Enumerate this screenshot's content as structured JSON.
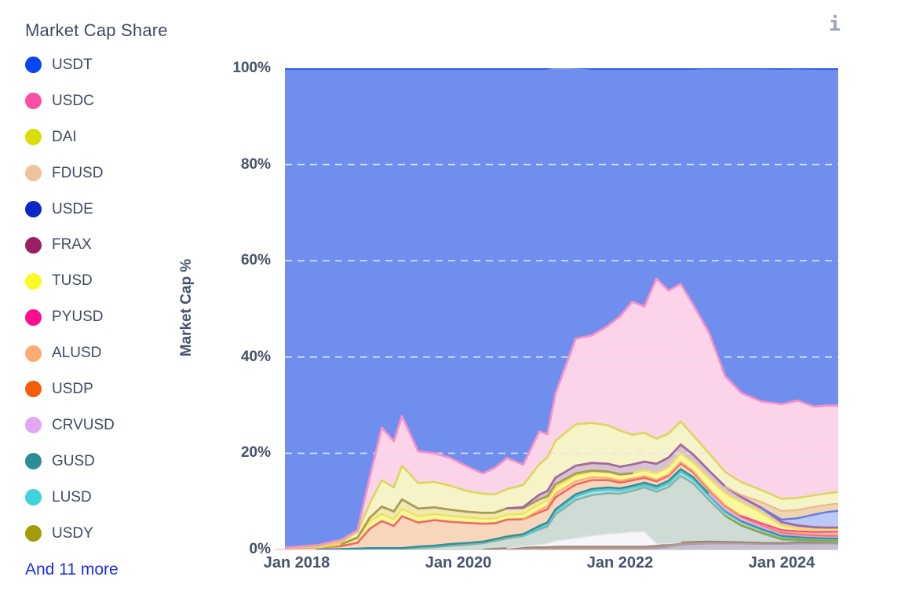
{
  "header": {
    "title": "Market Cap Share",
    "info_icon": "i"
  },
  "legend": {
    "items": [
      {
        "label": "USDT",
        "color": "#0647f0"
      },
      {
        "label": "USDC",
        "color": "#fc4fa3"
      },
      {
        "label": "DAI",
        "color": "#d9dd0a"
      },
      {
        "label": "FDUSD",
        "color": "#eec29b"
      },
      {
        "label": "USDE",
        "color": "#0b27c9"
      },
      {
        "label": "FRAX",
        "color": "#9a1f63"
      },
      {
        "label": "TUSD",
        "color": "#fbf928"
      },
      {
        "label": "PYUSD",
        "color": "#fb0f8e"
      },
      {
        "label": "ALUSD",
        "color": "#fcab72"
      },
      {
        "label": "USDP",
        "color": "#f45d0b"
      },
      {
        "label": "CRVUSD",
        "color": "#e2a6f5"
      },
      {
        "label": "GUSD",
        "color": "#2b8d96"
      },
      {
        "label": "LUSD",
        "color": "#3fd3dd"
      },
      {
        "label": "USDY",
        "color": "#a39b07"
      }
    ],
    "more_label": "And 11 more",
    "more_color": "#1b2fe8"
  },
  "axes": {
    "y_label": "Market Cap %",
    "y_ticks": [
      "100%",
      "80%",
      "60%",
      "40%",
      "20%",
      "0%"
    ],
    "x_ticks": [
      "Jan 2018",
      "Jan 2020",
      "Jan 2022",
      "Jan 2024"
    ],
    "grid_color": "#e4e3ed",
    "tick_color": "#46526e"
  },
  "chart_data": {
    "type": "area",
    "stacked": true,
    "title": "Market Cap Share",
    "ylabel": "Market Cap %",
    "unit": "percent of total stablecoin market cap",
    "ylim": [
      0,
      100
    ],
    "x_unit": "decimal year",
    "x_domain": [
      2017.85,
      2024.7
    ],
    "x_tick_years": [
      2018.0,
      2020.0,
      2022.0,
      2024.0
    ],
    "grid": "dashed horizontal at 20/40/60/80",
    "legend_position": "left column",
    "x": [
      2017.85,
      2018.25,
      2018.55,
      2018.75,
      2018.9,
      2019.05,
      2019.2,
      2019.3,
      2019.5,
      2019.7,
      2019.9,
      2020.1,
      2020.3,
      2020.45,
      2020.6,
      2020.8,
      2021.0,
      2021.1,
      2021.2,
      2021.45,
      2021.65,
      2021.85,
      2022.0,
      2022.15,
      2022.3,
      2022.45,
      2022.6,
      2022.75,
      2022.9,
      2023.1,
      2023.3,
      2023.5,
      2023.75,
      2024.0,
      2024.2,
      2024.4,
      2024.55,
      2024.7
    ],
    "series": [
      {
        "id": "more-gray",
        "label": "",
        "in_legend": false,
        "fill": "#c6bfcc",
        "stroke": "#aaa2b3",
        "sw": 1.8,
        "values": [
          0,
          0,
          0,
          0,
          0,
          0,
          0,
          0,
          0,
          0,
          0,
          0,
          0,
          0,
          0,
          0,
          0,
          0,
          0,
          0,
          0,
          0,
          0,
          0,
          0,
          0.2,
          0.5,
          0.9,
          1.1,
          1.2,
          1.2,
          1.2,
          1.1,
          1.1,
          1.2,
          1.2,
          1.2,
          1.2
        ]
      },
      {
        "id": "more-brown",
        "label": "",
        "in_legend": false,
        "fill": "#b49a89",
        "stroke": "#9b8170",
        "sw": 1.8,
        "values": [
          0,
          0,
          0,
          0,
          0,
          0,
          0,
          0,
          0,
          0,
          0,
          0,
          0,
          0.2,
          0.3,
          0.4,
          0.5,
          0.5,
          0.6,
          0.6,
          0.6,
          0.6,
          0.6,
          0.6,
          0.6,
          0.6,
          0.6,
          0.6,
          0.5,
          0.5,
          0.4,
          0.35,
          0.3,
          0.25,
          0.25,
          0.2,
          0.2,
          0.2
        ]
      },
      {
        "id": "more-white",
        "label": "",
        "in_legend": false,
        "fill": "#f6f5f9",
        "stroke": "#e7e4ee",
        "sw": 1.5,
        "values": [
          0,
          0,
          0,
          0,
          0,
          0,
          0,
          0,
          0,
          0,
          0,
          0,
          0,
          0,
          0,
          0.2,
          0.5,
          0.7,
          1.2,
          1.7,
          2.2,
          2.6,
          2.8,
          3.0,
          3.1,
          0.4,
          0.1,
          0,
          0,
          0,
          0,
          0,
          0,
          0,
          0,
          0,
          0,
          0
        ]
      },
      {
        "id": "more-sage",
        "label": "",
        "in_legend": false,
        "fill": "#cfdcd5",
        "stroke": "#85b3a4",
        "sw": 2.6,
        "values": [
          0,
          0,
          0,
          0,
          0,
          0,
          0,
          0,
          0.3,
          0.5,
          0.8,
          1.0,
          1.3,
          1.6,
          2.0,
          2.2,
          3.2,
          3.6,
          5.5,
          8.0,
          8.5,
          8.5,
          8.2,
          8.6,
          9.2,
          10.8,
          11.8,
          13.8,
          12.2,
          8.6,
          5.4,
          3.4,
          2.0,
          0.7,
          0.4,
          0.3,
          0.2,
          0.2
        ]
      },
      {
        "id": "usdy",
        "label": "USDY",
        "in_legend": true,
        "fill": "#c4ba4a",
        "stroke": "#a39b07",
        "sw": 1.8,
        "values": [
          0,
          0,
          0,
          0,
          0,
          0,
          0,
          0,
          0,
          0,
          0,
          0,
          0,
          0,
          0,
          0,
          0,
          0,
          0,
          0,
          0,
          0,
          0,
          0,
          0,
          0,
          0,
          0,
          0,
          0,
          0,
          0.1,
          0.15,
          0.2,
          0.2,
          0.2,
          0.2,
          0.2
        ]
      },
      {
        "id": "lusd",
        "label": "LUSD",
        "in_legend": true,
        "fill": "#aee3ec",
        "stroke": "#52cbd9",
        "sw": 2.2,
        "values": [
          0,
          0,
          0,
          0,
          0,
          0,
          0,
          0,
          0,
          0,
          0,
          0,
          0,
          0,
          0,
          0,
          0.3,
          0.45,
          0.6,
          0.7,
          0.8,
          0.7,
          0.6,
          0.55,
          0.5,
          0.6,
          0.7,
          0.8,
          0.8,
          0.8,
          0.7,
          0.6,
          0.5,
          0.4,
          0.35,
          0.3,
          0.3,
          0.3
        ]
      },
      {
        "id": "gusd",
        "label": "GUSD",
        "in_legend": true,
        "fill": "#7fb9bf",
        "stroke": "#2f8f9a",
        "sw": 2.4,
        "values": [
          0,
          0,
          0.1,
          0.2,
          0.3,
          0.3,
          0.3,
          0.3,
          0.3,
          0.3,
          0.35,
          0.35,
          0.35,
          0.35,
          0.4,
          0.4,
          0.4,
          0.4,
          0.45,
          0.5,
          0.5,
          0.5,
          0.5,
          0.5,
          0.5,
          0.55,
          0.6,
          0.6,
          0.5,
          0.45,
          0.4,
          0.3,
          0.25,
          0.2,
          0.2,
          0.2,
          0.2,
          0.2
        ]
      },
      {
        "id": "crvusd",
        "label": "CRVUSD",
        "in_legend": true,
        "fill": "#ecc8f7",
        "stroke": "#dd9df0",
        "sw": 2.0,
        "values": [
          0,
          0,
          0,
          0,
          0,
          0,
          0,
          0,
          0,
          0,
          0,
          0,
          0,
          0,
          0,
          0,
          0,
          0,
          0,
          0,
          0,
          0,
          0,
          0,
          0,
          0,
          0,
          0,
          0,
          0,
          0.2,
          0.25,
          0.3,
          0.3,
          0.3,
          0.3,
          0.3,
          0.3
        ]
      },
      {
        "id": "usdp",
        "label": "USDP",
        "in_legend": true,
        "fill": "#f8d6bb",
        "stroke": "#ed6a62",
        "sw": 2.6,
        "values": [
          0.3,
          0.4,
          0.6,
          1.2,
          4.0,
          5.6,
          4.6,
          6.6,
          5.0,
          5.3,
          4.6,
          4.2,
          3.7,
          3.3,
          3.5,
          3.1,
          2.8,
          2.7,
          2.5,
          2.0,
          1.8,
          1.5,
          1.2,
          1.1,
          1.0,
          1.0,
          1.0,
          1.2,
          1.0,
          0.8,
          0.7,
          0.6,
          0.5,
          0.4,
          0.35,
          0.3,
          0.3,
          0.3
        ]
      },
      {
        "id": "alusd",
        "label": "ALUSD",
        "in_legend": true,
        "fill": "#fdd3ab",
        "stroke": "#fcab72",
        "sw": 2.0,
        "values": [
          0,
          0,
          0,
          0,
          0,
          0,
          0,
          0,
          0,
          0,
          0,
          0,
          0,
          0,
          0,
          0,
          0.5,
          0.65,
          0.8,
          0.7,
          0.6,
          0.5,
          0.4,
          0.4,
          0.35,
          0.35,
          0.3,
          0.3,
          0.3,
          0.25,
          0.2,
          0.2,
          0.2,
          0.2,
          0.2,
          0.2,
          0.2,
          0.2
        ]
      },
      {
        "id": "pyusd",
        "label": "PYUSD",
        "in_legend": true,
        "fill": "#fcc0da",
        "stroke": "#f74b9a",
        "sw": 2.2,
        "values": [
          0,
          0,
          0,
          0,
          0,
          0,
          0,
          0,
          0,
          0,
          0,
          0,
          0,
          0,
          0,
          0,
          0,
          0,
          0,
          0,
          0,
          0,
          0,
          0,
          0,
          0,
          0,
          0,
          0,
          0,
          0,
          0,
          0.15,
          0.3,
          0.35,
          0.45,
          0.55,
          0.6
        ]
      },
      {
        "id": "tusd",
        "label": "TUSD",
        "in_legend": true,
        "fill": "#fbf79d",
        "stroke": "#eee356",
        "sw": 2.4,
        "values": [
          0,
          0,
          0.4,
          0.9,
          1.5,
          1.5,
          1.4,
          1.5,
          1.3,
          1.25,
          1.2,
          1.1,
          1.05,
          1.0,
          1.05,
          1.1,
          1.2,
          1.25,
          1.3,
          1.2,
          1.1,
          1.1,
          1.2,
          1.1,
          1.2,
          1.3,
          1.5,
          1.8,
          1.7,
          2.2,
          2.5,
          2.8,
          2.2,
          0.8,
          0.5,
          0.4,
          0.4,
          0.4
        ]
      },
      {
        "id": "more-olive",
        "label": "",
        "in_legend": false,
        "fill": "#efe9b4",
        "stroke": "#ab9a55",
        "sw": 2.8,
        "values": [
          0,
          0,
          0,
          0.2,
          0.8,
          1.5,
          1.6,
          2.0,
          1.6,
          1.4,
          1.3,
          1.2,
          1.2,
          1.2,
          1.3,
          1.2,
          1.0,
          0.8,
          0.6,
          0.4,
          0.3,
          0.2,
          0.1,
          0,
          0,
          0,
          0,
          0,
          0,
          0,
          0,
          0,
          0,
          0,
          0,
          0,
          0,
          0
        ]
      },
      {
        "id": "frax",
        "label": "FRAX",
        "in_legend": true,
        "fill": "#d8c3d3",
        "stroke": "#a4689e",
        "sw": 2.8,
        "values": [
          0,
          0,
          0,
          0,
          0,
          0,
          0,
          0,
          0,
          0,
          0,
          0,
          0,
          0,
          0,
          0.2,
          1.0,
          1.1,
          1.4,
          1.6,
          1.6,
          1.6,
          1.6,
          1.8,
          1.8,
          2.0,
          2.0,
          1.8,
          1.7,
          1.6,
          1.4,
          1.1,
          1.0,
          0.85,
          0.7,
          0.6,
          0.5,
          0.45
        ]
      },
      {
        "id": "usde",
        "label": "USDE",
        "in_legend": true,
        "fill": "#bcc9f4",
        "stroke": "#5f7de4",
        "sw": 2.4,
        "values": [
          0,
          0,
          0,
          0,
          0,
          0,
          0,
          0,
          0,
          0,
          0,
          0,
          0,
          0,
          0,
          0,
          0,
          0,
          0,
          0,
          0,
          0,
          0,
          0,
          0,
          0,
          0,
          0,
          0,
          0,
          0,
          0,
          0,
          0.5,
          1.5,
          2.6,
          3.2,
          3.5
        ]
      },
      {
        "id": "fdusd",
        "label": "FDUSD",
        "in_legend": true,
        "fill": "#f0d4b2",
        "stroke": "#e5ba8e",
        "sw": 2.2,
        "values": [
          0,
          0,
          0,
          0,
          0,
          0,
          0,
          0,
          0,
          0,
          0,
          0,
          0,
          0,
          0,
          0,
          0,
          0,
          0,
          0,
          0,
          0,
          0,
          0,
          0,
          0,
          0,
          0,
          0,
          0,
          0,
          0.4,
          1.2,
          1.8,
          1.7,
          1.6,
          1.5,
          1.5
        ]
      },
      {
        "id": "dai",
        "label": "DAI",
        "in_legend": true,
        "fill": "#f6f3c9",
        "stroke": "#dcd65d",
        "sw": 2.6,
        "values": [
          0.05,
          0.1,
          0.4,
          1.2,
          3.0,
          5.5,
          5.0,
          7.0,
          5.3,
          5.3,
          5.0,
          4.3,
          4.0,
          3.8,
          4.0,
          4.6,
          6.3,
          7.0,
          7.6,
          8.6,
          8.3,
          8.0,
          7.5,
          6.2,
          6.0,
          5.2,
          5.0,
          4.8,
          4.0,
          3.6,
          3.0,
          2.7,
          2.5,
          2.5,
          2.5,
          2.4,
          2.4,
          2.4
        ]
      },
      {
        "id": "usdc",
        "label": "USDC",
        "in_legend": true,
        "fill": "#fbd4ea",
        "stroke": "#f590c8",
        "sw": 2.8,
        "values": [
          0,
          0.4,
          0.5,
          0.3,
          5.4,
          10.9,
          9.6,
          10.3,
          6.6,
          5.95,
          5.75,
          5.15,
          4.2,
          5.55,
          6.45,
          4.2,
          6.8,
          4.85,
          9.85,
          17.8,
          18.2,
          20.7,
          23.8,
          27.65,
          26.25,
          33.3,
          29.7,
          28.6,
          27.2,
          25.1,
          19.95,
          18.55,
          18.4,
          19.7,
          20.25,
          18.45,
          18.25,
          17.95
        ]
      },
      {
        "id": "usdt",
        "label": "USDT",
        "in_legend": true,
        "fill": "#6f8eee",
        "stroke": "#1e49e6",
        "sw": 3.2,
        "values": [
          99.65,
          99.1,
          98.0,
          96.0,
          85.0,
          74.7,
          77.5,
          72.3,
          79.6,
          80.0,
          81.0,
          82.7,
          84.2,
          83.0,
          81.0,
          82.4,
          75.5,
          76.0,
          68.0,
          56.4,
          55.5,
          53.5,
          51.5,
          48.5,
          49.5,
          43.7,
          46.2,
          44.8,
          49.0,
          55.0,
          64.0,
          67.5,
          69.3,
          69.8,
          69.1,
          70.3,
          70.1,
          70.1
        ]
      }
    ]
  }
}
